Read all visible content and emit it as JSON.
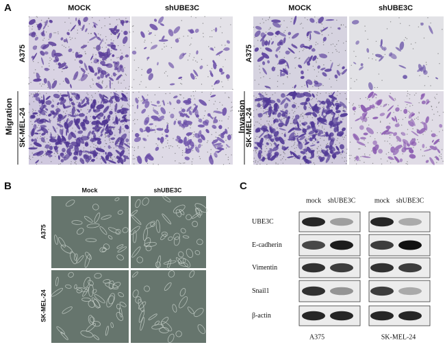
{
  "panel_a": {
    "label": "A",
    "groups": [
      {
        "name": "Migration",
        "columns": [
          "MOCK",
          "shUBE3C"
        ],
        "rows": [
          "A375",
          "SK-MEL-24"
        ]
      },
      {
        "name": "Invasion",
        "columns": [
          "MOCK",
          "shUBE3C"
        ],
        "rows": [
          "A375",
          "SK-MEL-24"
        ]
      }
    ]
  },
  "panel_b": {
    "label": "B",
    "columns": [
      "Mock",
      "shUBE3C"
    ],
    "rows": [
      "A375",
      "SK-MEL-24"
    ]
  },
  "panel_c": {
    "label": "C",
    "lanes": [
      "mock",
      "shUBE3C",
      "mock",
      "shUBE3C"
    ],
    "proteins": [
      "UBE3C",
      "E-cadherin",
      "Vimentin",
      "Snail1",
      "β-actin"
    ],
    "cell_lines": [
      "A375",
      "SK-MEL-24"
    ]
  }
}
